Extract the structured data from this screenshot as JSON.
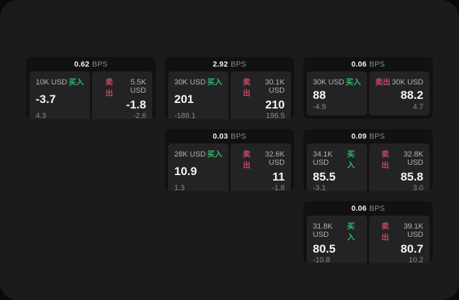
{
  "labels": {
    "bps": "BPS",
    "buy": "买入",
    "sell": "卖出"
  },
  "colors": {
    "page_bg": "#1b1b1c",
    "card_bg": "#111113",
    "panel_bg": "#232325",
    "buy_green": "#2eb96e",
    "sell_red": "#c54a62",
    "value_white": "#f5f5f5",
    "size_gray": "#b4b4b4",
    "muted_gray": "#8b8b8b"
  },
  "cards": [
    {
      "row": 1,
      "col": 1,
      "bps": "0.62",
      "buy": {
        "size": "10K USD",
        "value": "-3.7",
        "sub": "4.3"
      },
      "sell": {
        "size": "5.5K USD",
        "value": "-1.8",
        "sub": "-2.6"
      }
    },
    {
      "row": 1,
      "col": 2,
      "bps": "2.92",
      "buy": {
        "size": "30K USD",
        "value": "201",
        "sub": "-188.1"
      },
      "sell": {
        "size": "30.1K USD",
        "value": "210",
        "sub": "196.5"
      }
    },
    {
      "row": 1,
      "col": 3,
      "bps": "0.06",
      "buy": {
        "size": "30K USD",
        "value": "88",
        "sub": "-4.9"
      },
      "sell": {
        "size": "30K USD",
        "value": "88.2",
        "sub": "4.7"
      }
    },
    {
      "row": 2,
      "col": 2,
      "bps": "0.03",
      "buy": {
        "size": "28K USD",
        "value": "10.9",
        "sub": "1.3"
      },
      "sell": {
        "size": "32.6K USD",
        "value": "11",
        "sub": "-1.8"
      }
    },
    {
      "row": 2,
      "col": 3,
      "bps": "0.09",
      "buy": {
        "size": "34.1K USD",
        "value": "85.5",
        "sub": "-3.1"
      },
      "sell": {
        "size": "32.8K USD",
        "value": "85.8",
        "sub": "3.0"
      }
    },
    {
      "row": 3,
      "col": 3,
      "bps": "0.06",
      "buy": {
        "size": "31.8K USD",
        "value": "80.5",
        "sub": "-10.8"
      },
      "sell": {
        "size": "39.1K USD",
        "value": "80.7",
        "sub": "10.2"
      }
    }
  ]
}
